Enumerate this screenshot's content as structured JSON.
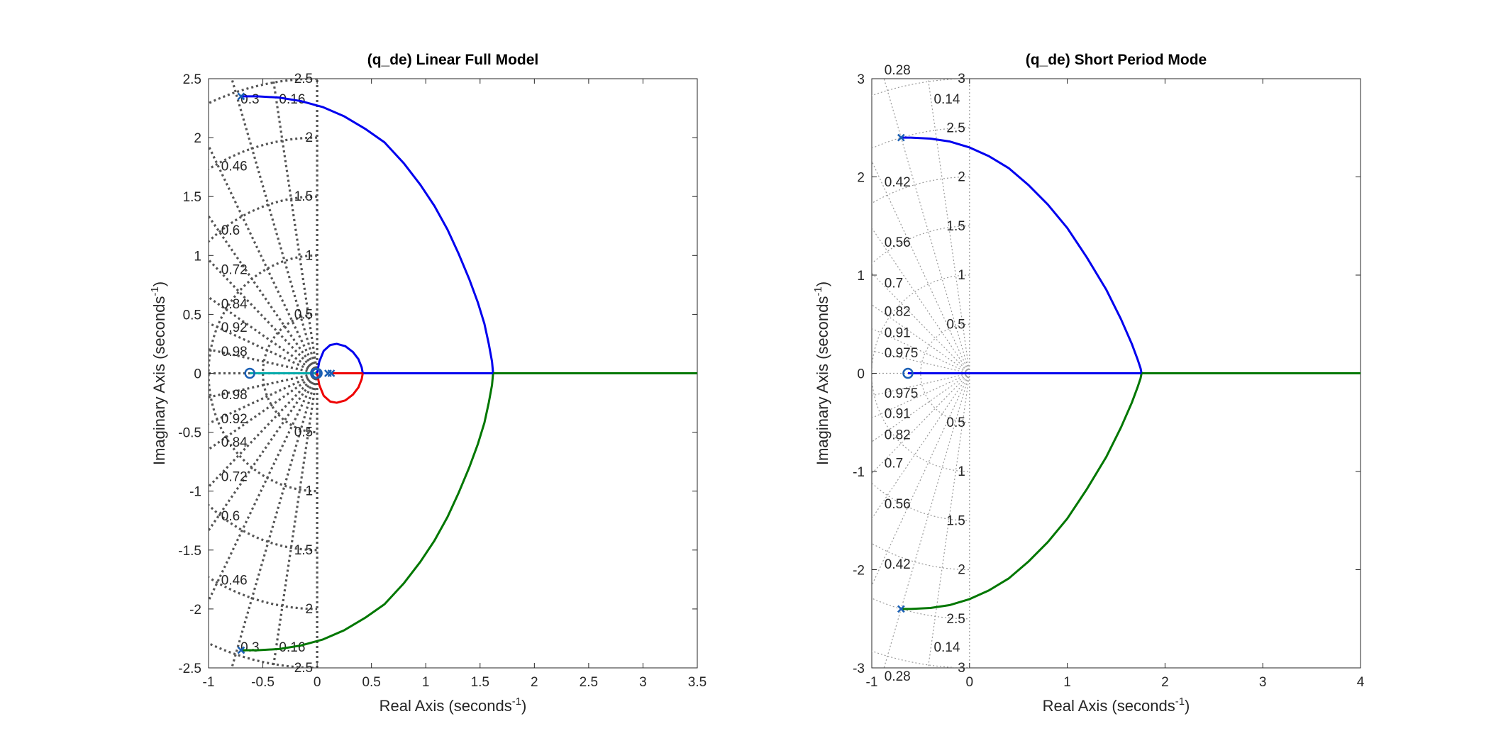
{
  "chart_data": [
    {
      "type": "line",
      "title": "(q_de) Linear Full Model",
      "xlabel": "Real Axis (seconds",
      "xlabel_sup": "-1",
      "xlabel_close": ")",
      "ylabel": "Imaginary Axis (seconds",
      "ylabel_sup": "-1",
      "ylabel_close": ")",
      "xlim": [
        -1,
        3.5
      ],
      "ylim": [
        -2.5,
        2.5
      ],
      "xticks": [
        -1,
        -0.5,
        0,
        0.5,
        1,
        1.5,
        2,
        2.5,
        3,
        3.5
      ],
      "yticks": [
        -2.5,
        -2,
        -1.5,
        -1,
        -0.5,
        0,
        0.5,
        1,
        1.5,
        2,
        2.5
      ],
      "xtick_labels": [
        "-1",
        "-0.5",
        "0",
        "0.5",
        "1",
        "1.5",
        "2",
        "2.5",
        "3",
        "3.5"
      ],
      "ytick_labels": [
        "-2.5",
        "-2",
        "-1.5",
        "-1",
        "-0.5",
        "0",
        "0.5",
        "1",
        "1.5",
        "2",
        "2.5"
      ],
      "grid": "s-plane damping/frequency grid, bold dotted",
      "damping_values": [
        0.16,
        0.3,
        0.46,
        0.6,
        0.72,
        0.84,
        0.92,
        0.98
      ],
      "damping_labels": [
        "0.16",
        "0.3",
        "0.46",
        "0.6",
        "0.72",
        "0.84",
        "0.92",
        "0.98"
      ],
      "wn_values": [
        0.5,
        1,
        1.5,
        2,
        2.5
      ],
      "wn_labels": [
        "0.5",
        "1",
        "1.5",
        "2",
        "2.5"
      ],
      "poles": [
        [
          -0.7,
          2.35
        ],
        [
          -0.7,
          -2.35
        ],
        [
          0.13,
          0
        ],
        [
          0.1,
          0
        ]
      ],
      "zeros": [
        [
          -0.62,
          0
        ],
        [
          -0.015,
          0
        ],
        [
          0.0,
          0
        ]
      ],
      "series": [
        {
          "color": "#0000ee",
          "x": [
            -0.7,
            -0.55,
            -0.35,
            -0.15,
            0.05,
            0.25,
            0.45,
            0.62,
            0.8,
            0.95,
            1.08,
            1.2,
            1.3,
            1.4,
            1.48,
            1.54,
            1.58,
            1.61,
            1.62
          ],
          "y": [
            2.35,
            2.35,
            2.34,
            2.31,
            2.26,
            2.18,
            2.07,
            1.96,
            1.78,
            1.6,
            1.42,
            1.22,
            1.02,
            0.8,
            0.6,
            0.42,
            0.25,
            0.1,
            0
          ]
        },
        {
          "color": "#007700",
          "x": [
            -0.7,
            -0.55,
            -0.35,
            -0.15,
            0.05,
            0.25,
            0.45,
            0.62,
            0.8,
            0.95,
            1.08,
            1.2,
            1.3,
            1.4,
            1.48,
            1.54,
            1.58,
            1.61,
            1.62
          ],
          "y": [
            -2.35,
            -2.35,
            -2.34,
            -2.31,
            -2.26,
            -2.18,
            -2.07,
            -1.96,
            -1.78,
            -1.6,
            -1.42,
            -1.22,
            -1.02,
            -0.8,
            -0.6,
            -0.42,
            -0.25,
            -0.1,
            0
          ]
        },
        {
          "color": "#007700",
          "x": [
            1.62,
            3.5
          ],
          "y": [
            0,
            0
          ]
        },
        {
          "color": "#0000ee",
          "x": [
            0.42,
            1.62
          ],
          "y": [
            0,
            0
          ]
        },
        {
          "color": "#0000ee",
          "x": [
            0.0,
            0.02,
            0.06,
            0.12,
            0.18,
            0.26,
            0.33,
            0.38,
            0.41,
            0.42
          ],
          "y": [
            0.0,
            0.1,
            0.19,
            0.24,
            0.25,
            0.23,
            0.18,
            0.12,
            0.05,
            0.0
          ]
        },
        {
          "color": "#ee0000",
          "x": [
            0.0,
            0.02,
            0.06,
            0.12,
            0.18,
            0.26,
            0.33,
            0.38,
            0.41,
            0.42
          ],
          "y": [
            0.0,
            -0.1,
            -0.19,
            -0.24,
            -0.25,
            -0.23,
            -0.18,
            -0.12,
            -0.05,
            0.0
          ]
        },
        {
          "color": "#ee0000",
          "x": [
            0.13,
            0.42
          ],
          "y": [
            0,
            0
          ]
        },
        {
          "color": "#00aaaa",
          "x": [
            -0.62,
            -0.015
          ],
          "y": [
            0,
            0
          ]
        }
      ]
    },
    {
      "type": "line",
      "title": "(q_de) Short Period Mode",
      "xlabel": "Real Axis (seconds",
      "xlabel_sup": "-1",
      "xlabel_close": ")",
      "ylabel": "Imaginary Axis (seconds",
      "ylabel_sup": "-1",
      "ylabel_close": ")",
      "xlim": [
        -1,
        4
      ],
      "ylim": [
        -3,
        3
      ],
      "xticks": [
        -1,
        0,
        1,
        2,
        3,
        4
      ],
      "yticks": [
        -3,
        -2,
        -1,
        0,
        1,
        2,
        3
      ],
      "xtick_labels": [
        "-1",
        "0",
        "1",
        "2",
        "3",
        "4"
      ],
      "ytick_labels": [
        "-3",
        "-2",
        "-1",
        "0",
        "1",
        "2",
        "3"
      ],
      "grid": "s-plane damping/frequency grid, light dotted",
      "damping_values": [
        0.14,
        0.28,
        0.42,
        0.56,
        0.7,
        0.82,
        0.91,
        0.975
      ],
      "damping_labels": [
        "0.14",
        "0.28",
        "0.42",
        "0.56",
        "0.7",
        "0.82",
        "0.91",
        "0.975"
      ],
      "wn_values": [
        0.5,
        1,
        1.5,
        2,
        2.5,
        3
      ],
      "wn_labels": [
        "0.5",
        "1",
        "1.5",
        "2",
        "2.5",
        "3"
      ],
      "poles": [
        [
          -0.7,
          2.4
        ],
        [
          -0.7,
          -2.4
        ]
      ],
      "zeros": [
        [
          -0.63,
          0
        ]
      ],
      "series": [
        {
          "color": "#0000ee",
          "x": [
            -0.7,
            -0.6,
            -0.4,
            -0.2,
            0.0,
            0.2,
            0.4,
            0.6,
            0.8,
            1.0,
            1.2,
            1.4,
            1.55,
            1.66,
            1.72,
            1.75,
            1.76
          ],
          "y": [
            2.4,
            2.4,
            2.39,
            2.36,
            2.3,
            2.21,
            2.09,
            1.92,
            1.72,
            1.48,
            1.18,
            0.85,
            0.55,
            0.3,
            0.14,
            0.05,
            0
          ]
        },
        {
          "color": "#007700",
          "x": [
            -0.7,
            -0.6,
            -0.4,
            -0.2,
            0.0,
            0.2,
            0.4,
            0.6,
            0.8,
            1.0,
            1.2,
            1.4,
            1.55,
            1.66,
            1.72,
            1.75,
            1.76
          ],
          "y": [
            -2.4,
            -2.4,
            -2.39,
            -2.36,
            -2.3,
            -2.21,
            -2.09,
            -1.92,
            -1.72,
            -1.48,
            -1.18,
            -0.85,
            -0.55,
            -0.3,
            -0.14,
            -0.05,
            0
          ]
        },
        {
          "color": "#007700",
          "x": [
            1.76,
            4.0
          ],
          "y": [
            0,
            0
          ]
        },
        {
          "color": "#0000ee",
          "x": [
            -0.63,
            1.76
          ],
          "y": [
            0,
            0
          ]
        }
      ]
    }
  ]
}
